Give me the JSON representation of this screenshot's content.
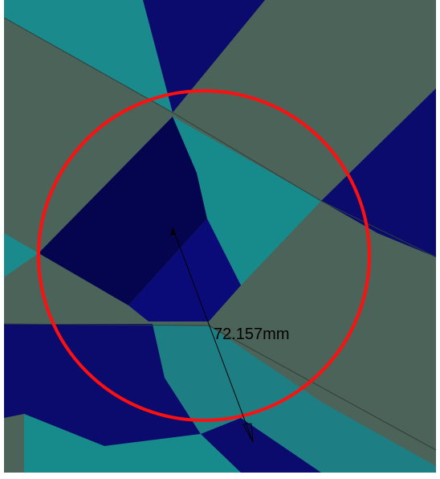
{
  "viewport": {
    "dimension_label": "72.157mm"
  }
}
